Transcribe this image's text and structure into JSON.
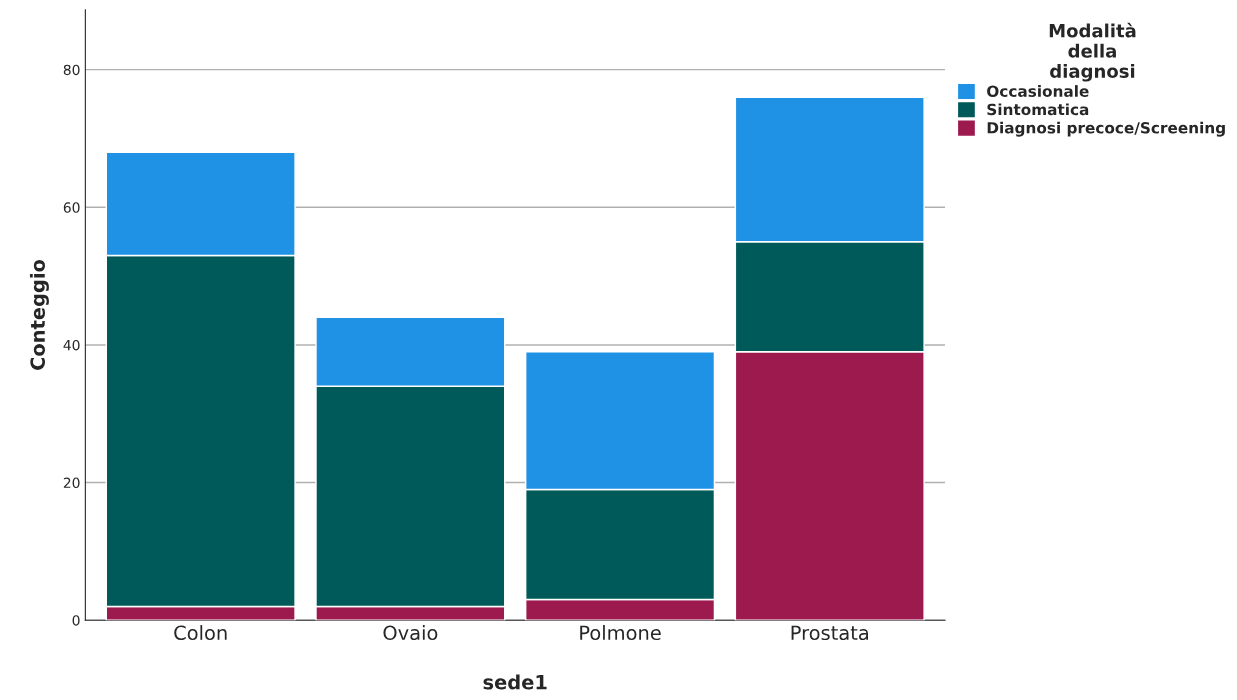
{
  "chart_data": {
    "type": "bar",
    "stacked": true,
    "xlabel": "sede1",
    "ylabel": "Conteggio",
    "legend_title": "Modalità\ndella\ndiagnosi",
    "categories": [
      "Colon",
      "Ovaio",
      "Polmone",
      "Prostata"
    ],
    "series": [
      {
        "name": "Diagnosi precoce/Screening",
        "color": "#9c1a4e",
        "values": [
          2,
          2,
          3,
          39
        ]
      },
      {
        "name": "Sintomatica",
        "color": "#005a5a",
        "values": [
          51,
          32,
          16,
          16
        ]
      },
      {
        "name": "Occasionale",
        "color": "#1f92e6",
        "values": [
          15,
          10,
          20,
          21
        ]
      }
    ],
    "ylim": [
      0,
      88.7
    ],
    "yticks": [
      0,
      20,
      40,
      60,
      80
    ],
    "grid": "y",
    "legend": "top right"
  }
}
